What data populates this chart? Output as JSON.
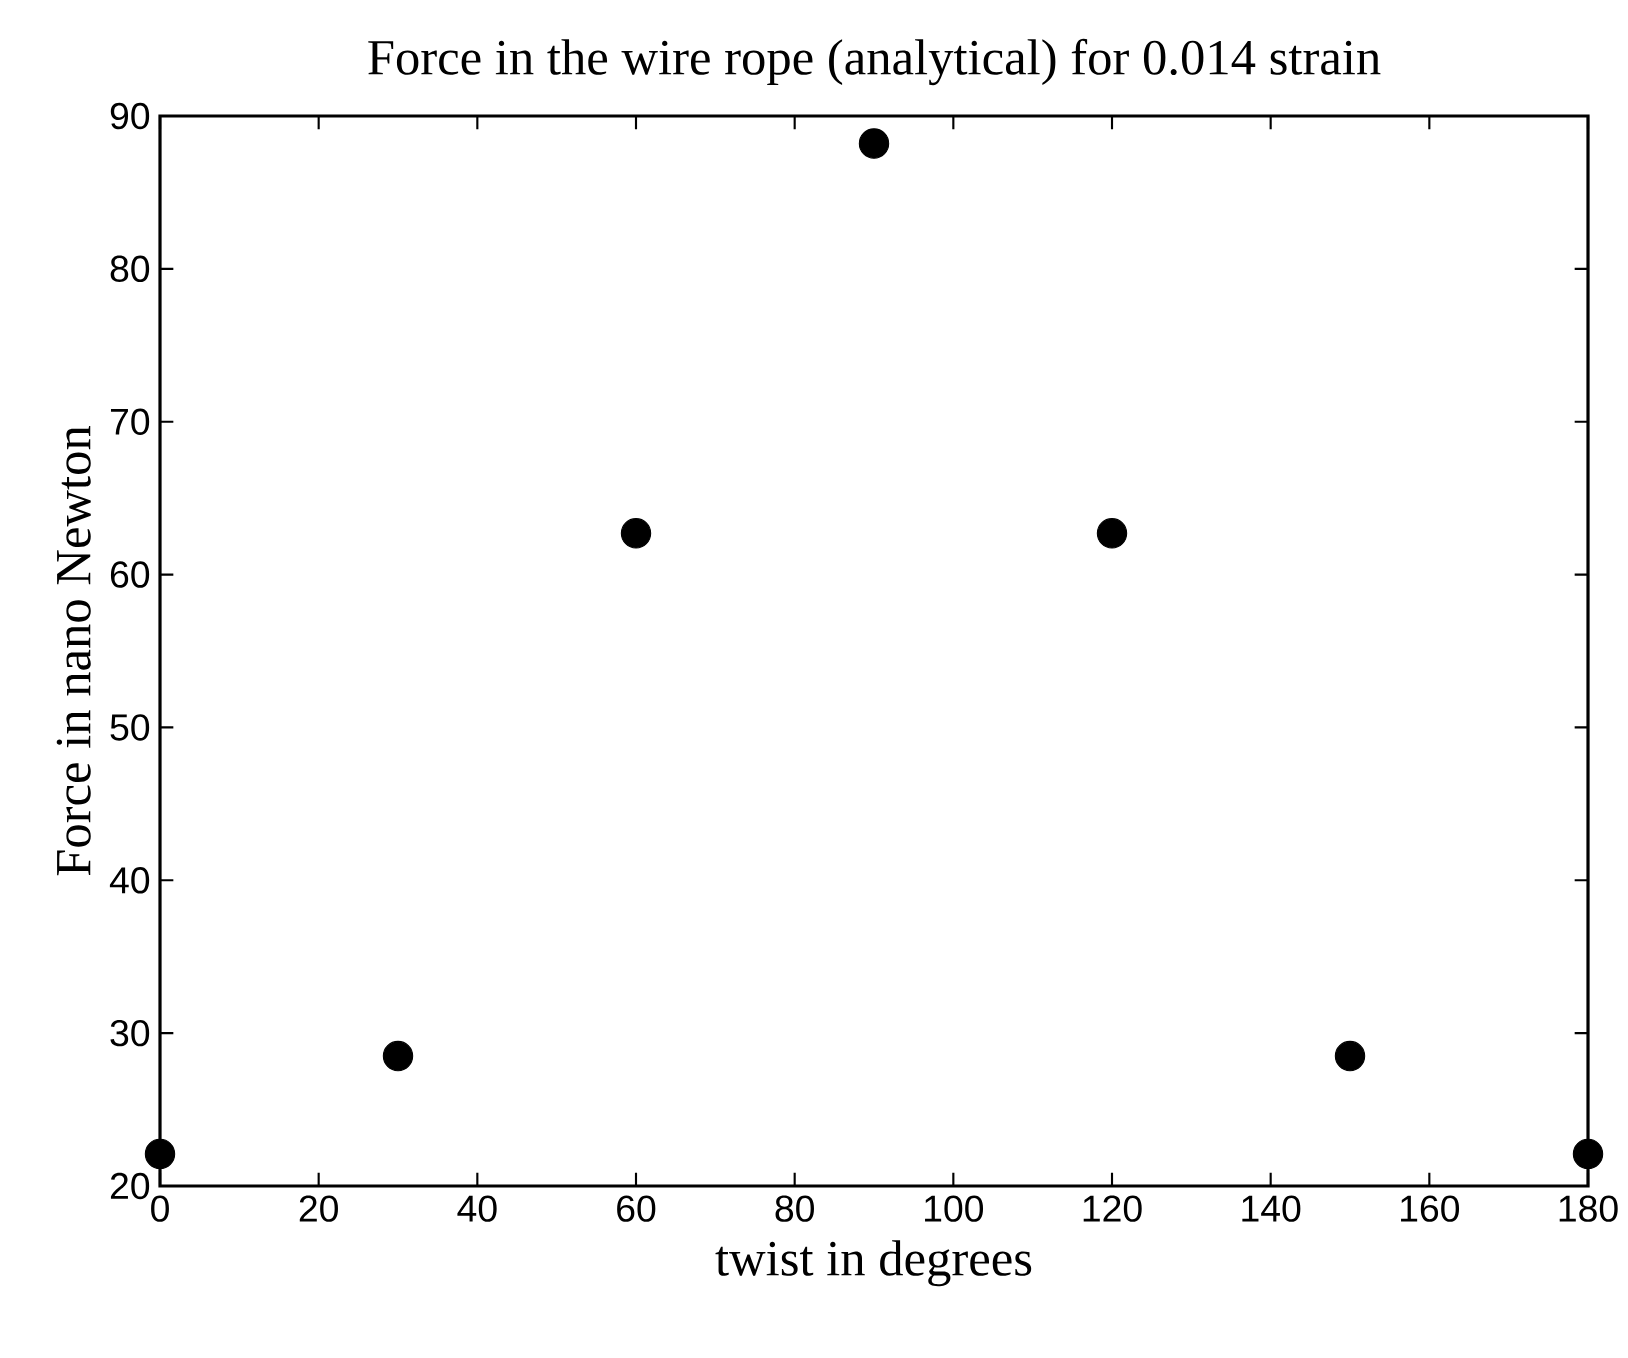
{
  "chart_data": {
    "type": "scatter",
    "title": "Force in the wire rope (analytical) for 0.014 strain",
    "xlabel": "twist in degrees",
    "ylabel": "Force in nano Newton",
    "x": [
      0,
      30,
      60,
      90,
      120,
      150,
      180
    ],
    "series": [
      {
        "color": "#000000",
        "values": [
          22.1,
          28.5,
          62.7,
          88.2,
          62.7,
          28.5,
          22.1
        ]
      }
    ],
    "marker": "circle",
    "xlim": [
      0,
      180
    ],
    "ylim": [
      20,
      90
    ],
    "xticks": [
      0,
      20,
      40,
      60,
      80,
      100,
      120,
      140,
      160,
      180
    ],
    "yticks": [
      20,
      30,
      40,
      50,
      60,
      70,
      80,
      90
    ]
  }
}
